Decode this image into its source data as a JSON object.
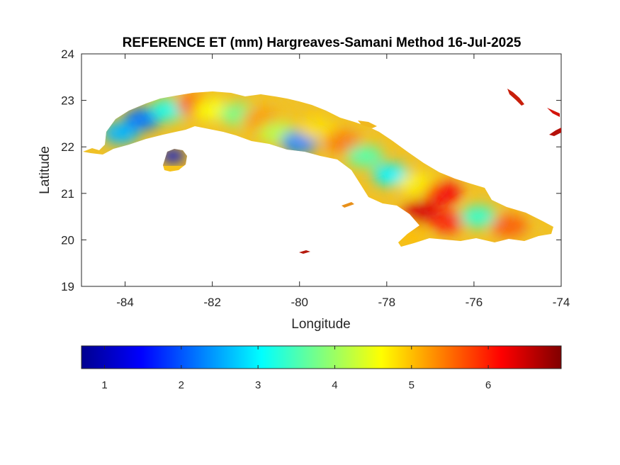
{
  "chart_data": {
    "type": "heatmap",
    "title": "REFERENCE ET (mm) Hargreaves-Samani Method  16-Jul-2025",
    "xlabel": "Longitude",
    "ylabel": "Latitude",
    "xlim": [
      -85,
      -74
    ],
    "ylim": [
      19,
      24
    ],
    "xticks": [
      "-84",
      "-82",
      "-80",
      "-78",
      "-76",
      "-74"
    ],
    "yticks": [
      "19",
      "20",
      "21",
      "22",
      "23",
      "24"
    ],
    "grid": false,
    "colorbar": {
      "colormap": "jet",
      "range": [
        0.7,
        6.95
      ],
      "ticks": [
        "1",
        "2",
        "3",
        "4",
        "5",
        "6"
      ],
      "orientation": "horizontal",
      "placement": "below"
    },
    "regions": [
      {
        "lon": -84.1,
        "lat": 22.3,
        "value": 2.6
      },
      {
        "lon": -83.6,
        "lat": 22.6,
        "value": 2.2
      },
      {
        "lon": -83.0,
        "lat": 22.8,
        "value": 3.2
      },
      {
        "lon": -82.4,
        "lat": 22.9,
        "value": 5.6
      },
      {
        "lon": -82.0,
        "lat": 22.8,
        "value": 4.6
      },
      {
        "lon": -81.4,
        "lat": 22.7,
        "value": 3.8
      },
      {
        "lon": -80.9,
        "lat": 22.6,
        "value": 5.2
      },
      {
        "lon": -80.5,
        "lat": 22.3,
        "value": 4.2
      },
      {
        "lon": -80.0,
        "lat": 22.1,
        "value": 2.3
      },
      {
        "lon": -79.6,
        "lat": 22.4,
        "value": 4.8
      },
      {
        "lon": -79.0,
        "lat": 22.1,
        "value": 5.4
      },
      {
        "lon": -78.5,
        "lat": 21.8,
        "value": 3.6
      },
      {
        "lon": -77.9,
        "lat": 21.4,
        "value": 3.0
      },
      {
        "lon": -77.3,
        "lat": 21.2,
        "value": 4.7
      },
      {
        "lon": -76.7,
        "lat": 21.0,
        "value": 6.2
      },
      {
        "lon": -77.2,
        "lat": 20.6,
        "value": 6.4
      },
      {
        "lon": -76.6,
        "lat": 20.4,
        "value": 6.0
      },
      {
        "lon": -75.9,
        "lat": 20.5,
        "value": 3.4
      },
      {
        "lon": -75.2,
        "lat": 20.3,
        "value": 5.6
      },
      {
        "lon": -77.5,
        "lat": 20.1,
        "value": 5.0
      },
      {
        "lon": -82.9,
        "lat": 21.85,
        "value": 1.2
      }
    ]
  }
}
